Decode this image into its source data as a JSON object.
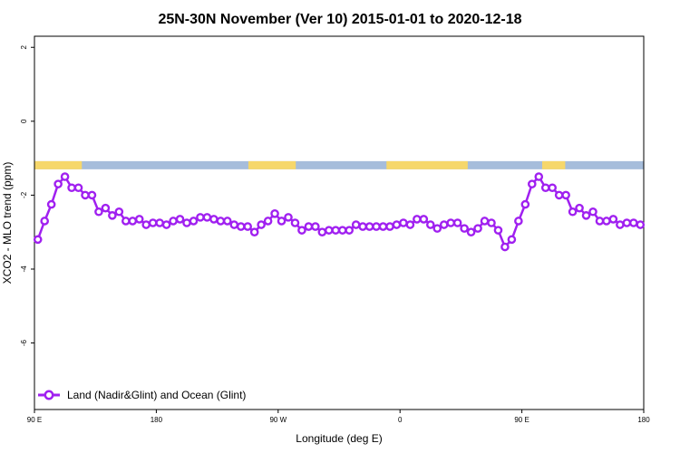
{
  "chart_data": {
    "type": "line",
    "title": "25N-30N November (Ver 10)   2015-01-01 to 2020-12-18",
    "xlabel": "Longitude (deg E)",
    "ylabel": "XCO2 - MLO trend (ppm)",
    "xlim": [
      0,
      450
    ],
    "ylim": [
      -7.8,
      2.3
    ],
    "x_ticks": [
      {
        "value": 0,
        "label": "90 E"
      },
      {
        "value": 90,
        "label": "180"
      },
      {
        "value": 180,
        "label": "90 W"
      },
      {
        "value": 270,
        "label": "0"
      },
      {
        "value": 360,
        "label": "90 E"
      },
      {
        "value": 450,
        "label": "180"
      }
    ],
    "y_ticks": [
      -6,
      -4,
      -2,
      0,
      2
    ],
    "x_axis_note": "Longitude wraps: 90 E through 180 and 90 W to 0, 90 E and 180 again (450 degrees shown)",
    "land_sea_band": {
      "y_range": [
        -1.3,
        -1.08
      ],
      "ocean_color": "#a6bddb",
      "land_color": "#f6d76b",
      "land_segments": [
        [
          0,
          35
        ],
        [
          158,
          193
        ],
        [
          260,
          320
        ],
        [
          375,
          392
        ]
      ]
    },
    "legend": {
      "position": "bottom-left",
      "label": "Land (Nadir&Glint) and Ocean (Glint)"
    },
    "series": [
      {
        "name": "Land (Nadir&Glint) and Ocean (Glint)",
        "color": "#a020f0",
        "x": [
          2.5,
          7.5,
          12.5,
          17.5,
          22.5,
          27.5,
          32.5,
          37.5,
          42.5,
          47.5,
          52.5,
          57.5,
          62.5,
          67.5,
          72.5,
          77.5,
          82.5,
          87.5,
          92.5,
          97.5,
          102.5,
          107.5,
          112.5,
          117.5,
          122.5,
          127.5,
          132.5,
          137.5,
          142.5,
          147.5,
          152.5,
          157.5,
          162.5,
          167.5,
          172.5,
          177.5,
          182.5,
          187.5,
          192.5,
          197.5,
          202.5,
          207.5,
          212.5,
          217.5,
          222.5,
          227.5,
          232.5,
          237.5,
          242.5,
          247.5,
          252.5,
          257.5,
          262.5,
          267.5,
          272.5,
          277.5,
          282.5,
          287.5,
          292.5,
          297.5,
          302.5,
          307.5,
          312.5,
          317.5,
          322.5,
          327.5,
          332.5,
          337.5,
          342.5,
          347.5,
          352.5,
          357.5,
          362.5,
          367.5,
          372.5,
          377.5,
          382.5,
          387.5,
          392.5,
          397.5,
          402.5,
          407.5,
          412.5,
          417.5,
          422.5,
          427.5,
          432.5,
          437.5,
          442.5,
          447.5
        ],
        "y": [
          -3.2,
          -2.7,
          -2.25,
          -1.7,
          -1.5,
          -1.8,
          -1.8,
          -2.0,
          -2.0,
          -2.45,
          -2.35,
          -2.55,
          -2.45,
          -2.7,
          -2.7,
          -2.65,
          -2.8,
          -2.75,
          -2.75,
          -2.8,
          -2.7,
          -2.65,
          -2.75,
          -2.7,
          -2.6,
          -2.6,
          -2.65,
          -2.7,
          -2.7,
          -2.8,
          -2.85,
          -2.85,
          -3.0,
          -2.8,
          -2.7,
          -2.5,
          -2.7,
          -2.6,
          -2.75,
          -2.95,
          -2.85,
          -2.85,
          -3.0,
          -2.95,
          -2.95,
          -2.95,
          -2.95,
          -2.8,
          -2.85,
          -2.85,
          -2.85,
          -2.85,
          -2.85,
          -2.8,
          -2.75,
          -2.8,
          -2.65,
          -2.65,
          -2.8,
          -2.9,
          -2.8,
          -2.75,
          -2.75,
          -2.9,
          -3.0,
          -2.9,
          -2.7,
          -2.75,
          -2.95,
          -3.4,
          -3.2,
          -2.7,
          -2.25,
          -1.7,
          -1.5,
          -1.8,
          -1.8,
          -2.0,
          -2.0,
          -2.45,
          -2.35,
          -2.55,
          -2.45,
          -2.7,
          -2.7,
          -2.65,
          -2.8,
          -2.75,
          -2.75,
          -2.8
        ]
      }
    ]
  }
}
